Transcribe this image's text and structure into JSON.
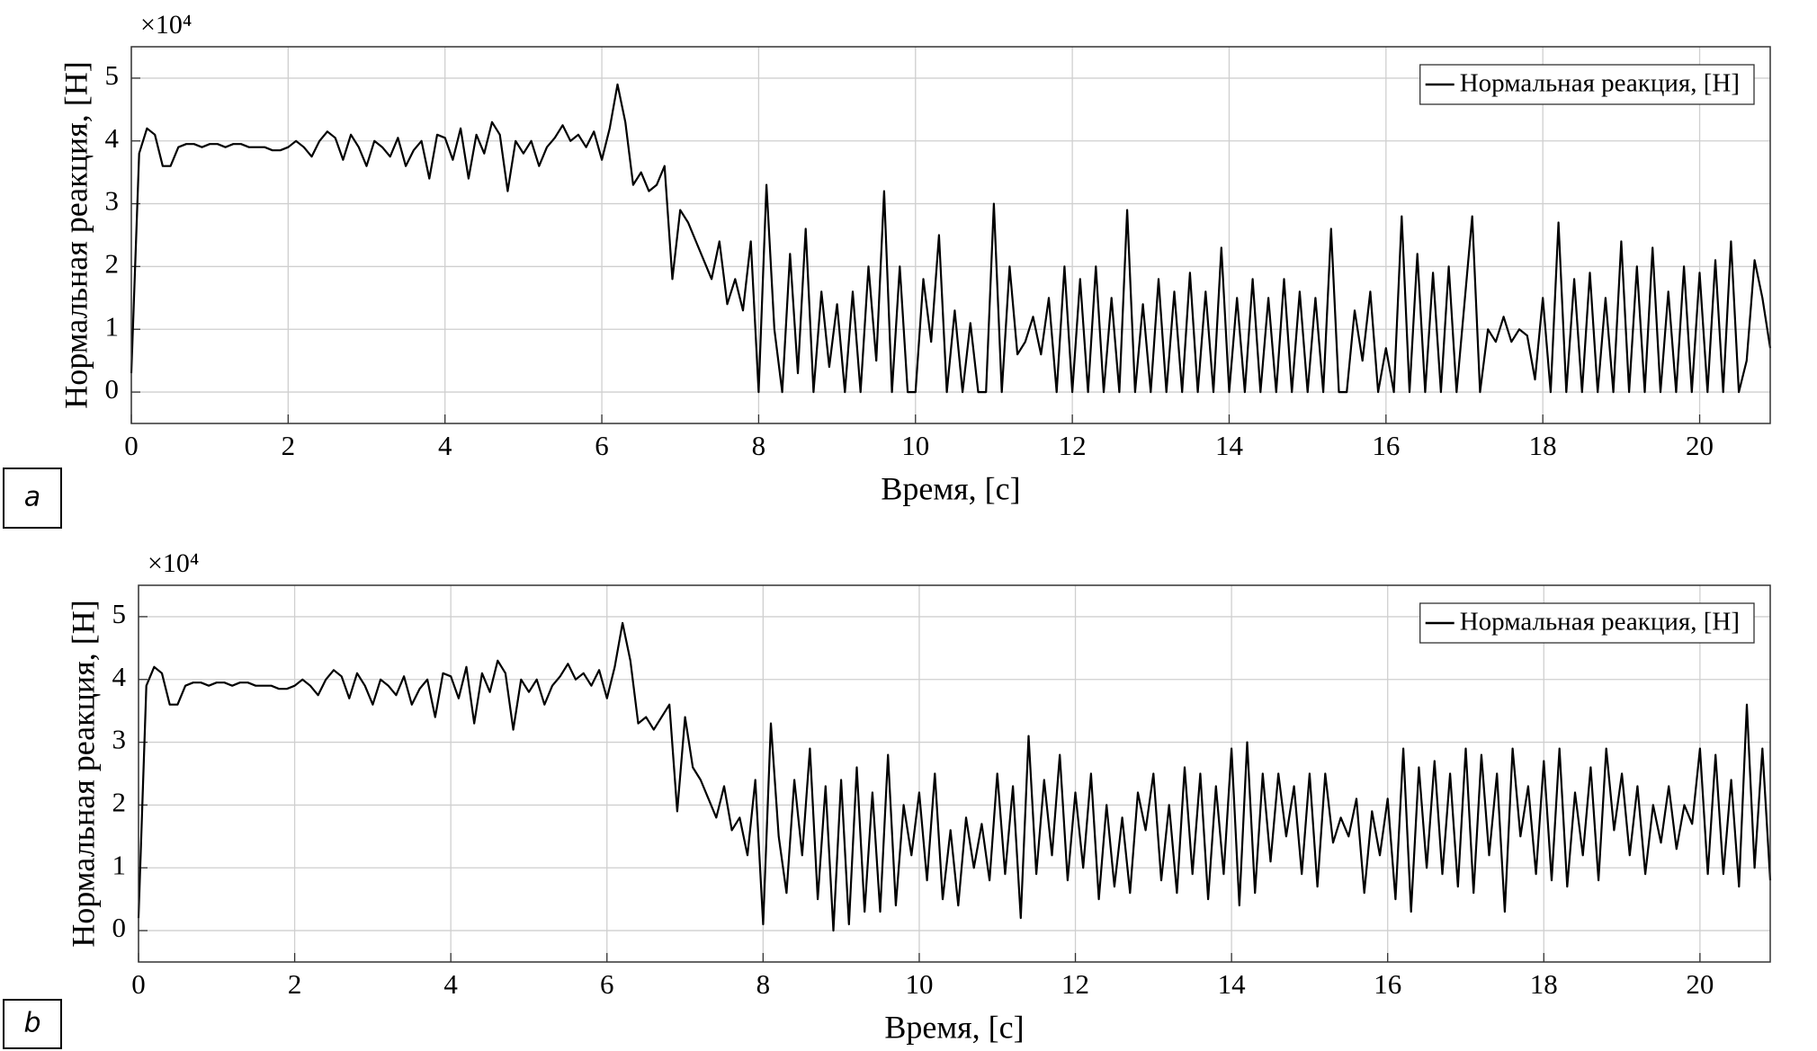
{
  "chart_data": [
    {
      "type": "line",
      "panel_label": "a",
      "multiplier": "×10⁴",
      "xlabel": "Время, [с]",
      "ylabel": "Нормальная реакция, [Н]",
      "xlim": [
        0,
        20.9
      ],
      "ylim": [
        -0.5,
        5.5
      ],
      "xticks": [
        0,
        2,
        4,
        6,
        8,
        10,
        12,
        14,
        16,
        18,
        20
      ],
      "yticks": [
        0,
        1,
        2,
        3,
        4,
        5
      ],
      "grid": true,
      "legend": "upper right",
      "x": [
        0,
        0.1,
        0.2,
        0.3,
        0.4,
        0.5,
        0.6,
        0.7,
        0.8,
        0.9,
        1,
        1.1,
        1.2,
        1.3,
        1.4,
        1.5,
        1.6,
        1.7,
        1.8,
        1.9,
        2,
        2.1,
        2.2,
        2.3,
        2.4,
        2.5,
        2.6,
        2.7,
        2.8,
        2.9,
        3,
        3.1,
        3.2,
        3.3,
        3.4,
        3.5,
        3.6,
        3.7,
        3.8,
        3.9,
        4,
        4.1,
        4.2,
        4.3,
        4.4,
        4.5,
        4.6,
        4.7,
        4.8,
        4.9,
        5,
        5.1,
        5.2,
        5.3,
        5.4,
        5.5,
        5.6,
        5.7,
        5.8,
        5.9,
        6,
        6.1,
        6.2,
        6.3,
        6.4,
        6.5,
        6.6,
        6.7,
        6.8,
        6.9,
        7,
        7.1,
        7.2,
        7.3,
        7.4,
        7.5,
        7.6,
        7.7,
        7.8,
        7.9,
        8,
        8.1,
        8.2,
        8.3,
        8.4,
        8.5,
        8.6,
        8.7,
        8.8,
        8.9,
        9,
        9.1,
        9.2,
        9.3,
        9.4,
        9.5,
        9.6,
        9.7,
        9.8,
        9.9,
        10,
        10.1,
        10.2,
        10.3,
        10.4,
        10.5,
        10.6,
        10.7,
        10.8,
        10.9,
        11,
        11.1,
        11.2,
        11.3,
        11.4,
        11.5,
        11.6,
        11.7,
        11.8,
        11.9,
        12,
        12.1,
        12.2,
        12.3,
        12.4,
        12.5,
        12.6,
        12.7,
        12.8,
        12.9,
        13,
        13.1,
        13.2,
        13.3,
        13.4,
        13.5,
        13.6,
        13.7,
        13.8,
        13.9,
        14,
        14.1,
        14.2,
        14.3,
        14.4,
        14.5,
        14.6,
        14.7,
        14.8,
        14.9,
        15,
        15.1,
        15.2,
        15.3,
        15.4,
        15.5,
        15.6,
        15.7,
        15.8,
        15.9,
        16,
        16.1,
        16.2,
        16.3,
        16.4,
        16.5,
        16.6,
        16.7,
        16.8,
        16.9,
        17,
        17.1,
        17.2,
        17.3,
        17.4,
        17.5,
        17.6,
        17.7,
        17.8,
        17.9,
        18,
        18.1,
        18.2,
        18.3,
        18.4,
        18.5,
        18.6,
        18.7,
        18.8,
        18.9,
        19,
        19.1,
        19.2,
        19.3,
        19.4,
        19.5,
        19.6,
        19.7,
        19.8,
        19.9,
        20,
        20.1,
        20.2,
        20.3,
        20.4,
        20.5,
        20.6,
        20.7,
        20.8,
        20.9
      ],
      "series": [
        {
          "name": "Нормальная реакция, [Н]",
          "color": "#000000",
          "values": [
            0.3,
            3.8,
            4.2,
            4.1,
            3.6,
            3.6,
            3.9,
            3.95,
            3.95,
            3.9,
            3.95,
            3.95,
            3.9,
            3.95,
            3.95,
            3.9,
            3.9,
            3.9,
            3.85,
            3.85,
            3.9,
            4.0,
            3.9,
            3.75,
            4.0,
            4.15,
            4.05,
            3.7,
            4.1,
            3.9,
            3.6,
            4.0,
            3.9,
            3.75,
            4.05,
            3.6,
            3.85,
            4.0,
            3.4,
            4.1,
            4.05,
            3.7,
            4.2,
            3.4,
            4.1,
            3.8,
            4.3,
            4.1,
            3.2,
            4.0,
            3.8,
            4.0,
            3.6,
            3.9,
            4.05,
            4.25,
            4.0,
            4.1,
            3.9,
            4.15,
            3.7,
            4.2,
            4.9,
            4.3,
            3.3,
            3.5,
            3.2,
            3.3,
            3.6,
            1.8,
            2.9,
            2.7,
            2.4,
            2.1,
            1.8,
            2.4,
            1.4,
            1.8,
            1.3,
            2.4,
            0,
            3.3,
            1.0,
            0,
            2.2,
            0.3,
            2.6,
            0,
            1.6,
            0.4,
            1.4,
            0,
            1.6,
            0,
            2.0,
            0.5,
            3.2,
            0,
            2.0,
            0,
            0,
            1.8,
            0.8,
            2.5,
            0,
            1.3,
            0,
            1.1,
            0,
            0,
            3.0,
            0,
            2.0,
            0.6,
            0.8,
            1.2,
            0.6,
            1.5,
            0,
            2.0,
            0,
            1.8,
            0,
            2.0,
            0,
            1.5,
            0,
            2.9,
            0,
            1.4,
            0,
            1.8,
            0,
            1.6,
            0,
            1.9,
            0,
            1.6,
            0,
            2.3,
            0,
            1.5,
            0,
            1.8,
            0,
            1.5,
            0,
            1.8,
            0,
            1.6,
            0,
            1.5,
            0,
            2.6,
            0,
            0,
            1.3,
            0.5,
            1.6,
            0,
            0.7,
            0,
            2.8,
            0,
            2.2,
            0,
            1.9,
            0,
            2.0,
            0,
            1.4,
            2.8,
            0,
            1.0,
            0.8,
            1.2,
            0.8,
            1.0,
            0.9,
            0.2,
            1.5,
            0,
            2.7,
            0,
            1.8,
            0,
            1.9,
            0,
            1.5,
            0,
            2.4,
            0,
            2.0,
            0,
            2.3,
            0,
            1.6,
            0,
            2.0,
            0,
            1.9,
            0,
            2.1,
            0,
            2.4,
            0,
            0.5,
            2.1,
            1.5,
            0.7
          ]
        }
      ]
    },
    {
      "type": "line",
      "panel_label": "b",
      "multiplier": "×10⁴",
      "xlabel": "Время, [с]",
      "ylabel": "Нормальная реакция, [Н]",
      "xlim": [
        0,
        20.9
      ],
      "ylim": [
        -0.5,
        5.5
      ],
      "xticks": [
        0,
        2,
        4,
        6,
        8,
        10,
        12,
        14,
        16,
        18,
        20
      ],
      "yticks": [
        0,
        1,
        2,
        3,
        4,
        5
      ],
      "grid": true,
      "legend": "upper right",
      "x": [
        0,
        0.1,
        0.2,
        0.3,
        0.4,
        0.5,
        0.6,
        0.7,
        0.8,
        0.9,
        1,
        1.1,
        1.2,
        1.3,
        1.4,
        1.5,
        1.6,
        1.7,
        1.8,
        1.9,
        2,
        2.1,
        2.2,
        2.3,
        2.4,
        2.5,
        2.6,
        2.7,
        2.8,
        2.9,
        3,
        3.1,
        3.2,
        3.3,
        3.4,
        3.5,
        3.6,
        3.7,
        3.8,
        3.9,
        4,
        4.1,
        4.2,
        4.3,
        4.4,
        4.5,
        4.6,
        4.7,
        4.8,
        4.9,
        5,
        5.1,
        5.2,
        5.3,
        5.4,
        5.5,
        5.6,
        5.7,
        5.8,
        5.9,
        6,
        6.1,
        6.2,
        6.3,
        6.4,
        6.5,
        6.6,
        6.7,
        6.8,
        6.9,
        7,
        7.1,
        7.2,
        7.3,
        7.4,
        7.5,
        7.6,
        7.7,
        7.8,
        7.9,
        8,
        8.1,
        8.2,
        8.3,
        8.4,
        8.5,
        8.6,
        8.7,
        8.8,
        8.9,
        9,
        9.1,
        9.2,
        9.3,
        9.4,
        9.5,
        9.6,
        9.7,
        9.8,
        9.9,
        10,
        10.1,
        10.2,
        10.3,
        10.4,
        10.5,
        10.6,
        10.7,
        10.8,
        10.9,
        11,
        11.1,
        11.2,
        11.3,
        11.4,
        11.5,
        11.6,
        11.7,
        11.8,
        11.9,
        12,
        12.1,
        12.2,
        12.3,
        12.4,
        12.5,
        12.6,
        12.7,
        12.8,
        12.9,
        13,
        13.1,
        13.2,
        13.3,
        13.4,
        13.5,
        13.6,
        13.7,
        13.8,
        13.9,
        14,
        14.1,
        14.2,
        14.3,
        14.4,
        14.5,
        14.6,
        14.7,
        14.8,
        14.9,
        15,
        15.1,
        15.2,
        15.3,
        15.4,
        15.5,
        15.6,
        15.7,
        15.8,
        15.9,
        16,
        16.1,
        16.2,
        16.3,
        16.4,
        16.5,
        16.6,
        16.7,
        16.8,
        16.9,
        17,
        17.1,
        17.2,
        17.3,
        17.4,
        17.5,
        17.6,
        17.7,
        17.8,
        17.9,
        18,
        18.1,
        18.2,
        18.3,
        18.4,
        18.5,
        18.6,
        18.7,
        18.8,
        18.9,
        19,
        19.1,
        19.2,
        19.3,
        19.4,
        19.5,
        19.6,
        19.7,
        19.8,
        19.9,
        20,
        20.1,
        20.2,
        20.3,
        20.4,
        20.5,
        20.6,
        20.7,
        20.8,
        20.9
      ],
      "series": [
        {
          "name": "Нормальная реакция, [Н]",
          "color": "#000000",
          "values": [
            0.2,
            3.9,
            4.2,
            4.1,
            3.6,
            3.6,
            3.9,
            3.95,
            3.95,
            3.9,
            3.95,
            3.95,
            3.9,
            3.95,
            3.95,
            3.9,
            3.9,
            3.9,
            3.85,
            3.85,
            3.9,
            4.0,
            3.9,
            3.75,
            4.0,
            4.15,
            4.05,
            3.7,
            4.1,
            3.9,
            3.6,
            4.0,
            3.9,
            3.75,
            4.05,
            3.6,
            3.85,
            4.0,
            3.4,
            4.1,
            4.05,
            3.7,
            4.2,
            3.3,
            4.1,
            3.8,
            4.3,
            4.1,
            3.2,
            4.0,
            3.8,
            4.0,
            3.6,
            3.9,
            4.05,
            4.25,
            4.0,
            4.1,
            3.9,
            4.15,
            3.7,
            4.2,
            4.9,
            4.3,
            3.3,
            3.4,
            3.2,
            3.4,
            3.6,
            1.9,
            3.4,
            2.6,
            2.4,
            2.1,
            1.8,
            2.3,
            1.6,
            1.8,
            1.2,
            2.4,
            0.1,
            3.3,
            1.5,
            0.6,
            2.4,
            1.2,
            2.9,
            0.5,
            2.3,
            0,
            2.4,
            0.1,
            2.6,
            0.3,
            2.2,
            0.3,
            2.8,
            0.4,
            2.0,
            1.2,
            2.2,
            0.8,
            2.5,
            0.5,
            1.6,
            0.4,
            1.8,
            1.0,
            1.7,
            0.8,
            2.5,
            0.9,
            2.3,
            0.2,
            3.1,
            0.9,
            2.4,
            1.2,
            2.8,
            0.8,
            2.2,
            1.0,
            2.5,
            0.5,
            2.0,
            0.7,
            1.8,
            0.6,
            2.2,
            1.6,
            2.5,
            0.8,
            2.0,
            0.6,
            2.6,
            0.9,
            2.5,
            0.5,
            2.3,
            0.9,
            2.9,
            0.4,
            3.0,
            0.6,
            2.5,
            1.1,
            2.5,
            1.5,
            2.3,
            0.9,
            2.5,
            0.7,
            2.5,
            1.4,
            1.8,
            1.5,
            2.1,
            0.6,
            1.9,
            1.2,
            2.1,
            0.5,
            2.9,
            0.3,
            2.6,
            1.0,
            2.7,
            0.9,
            2.5,
            0.7,
            2.9,
            0.6,
            2.8,
            1.2,
            2.5,
            0.3,
            2.9,
            1.5,
            2.3,
            0.9,
            2.7,
            0.8,
            2.9,
            0.7,
            2.2,
            1.2,
            2.6,
            0.8,
            2.9,
            1.6,
            2.5,
            1.2,
            2.3,
            0.9,
            2.0,
            1.4,
            2.3,
            1.3,
            2.0,
            1.7,
            2.9,
            0.9,
            2.8,
            0.9,
            2.4,
            0.7,
            3.6,
            1.0,
            2.9,
            0.8
          ]
        }
      ]
    }
  ]
}
